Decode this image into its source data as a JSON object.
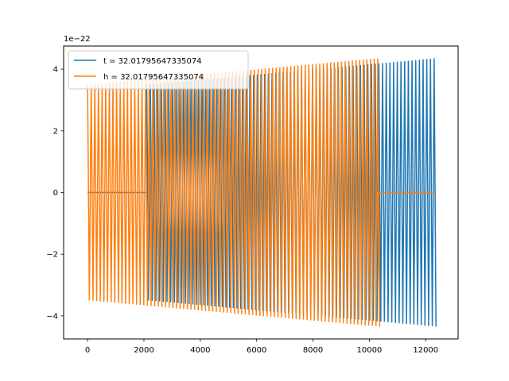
{
  "chart_data": {
    "type": "line",
    "offset_text": "1e−22",
    "xlim": [
      -850,
      13150
    ],
    "ylim": [
      -4.75,
      4.75
    ],
    "x_ticks": [
      0,
      2000,
      4000,
      6000,
      8000,
      10000,
      12000
    ],
    "x_tick_labels": [
      "0",
      "2000",
      "4000",
      "6000",
      "8000",
      "10000",
      "12000"
    ],
    "y_ticks": [
      -4,
      -2,
      0,
      2,
      4
    ],
    "y_tick_labels": [
      "−4",
      "−2",
      "0",
      "2",
      "4"
    ],
    "grid": false,
    "legend_position": "upper-left",
    "series": [
      {
        "name": "t = 32.01795647335074",
        "color": "#1f77b4",
        "segments": [
          {
            "x_start": 0,
            "x_end": 2100,
            "flat_value": 0
          },
          {
            "x_start": 2100,
            "x_end": 12300,
            "cycles": 78,
            "amplitude_start": 3.5,
            "amplitude_end": 4.35
          }
        ]
      },
      {
        "name": "h = 32.01795647335074",
        "color": "#ff7f0e",
        "segments": [
          {
            "x_start": 0,
            "x_end": 10300,
            "cycles": 80,
            "amplitude_start": 3.5,
            "amplitude_end": 4.35
          },
          {
            "x_start": 10300,
            "x_end": 12300,
            "flat_value": 0
          }
        ]
      }
    ]
  }
}
